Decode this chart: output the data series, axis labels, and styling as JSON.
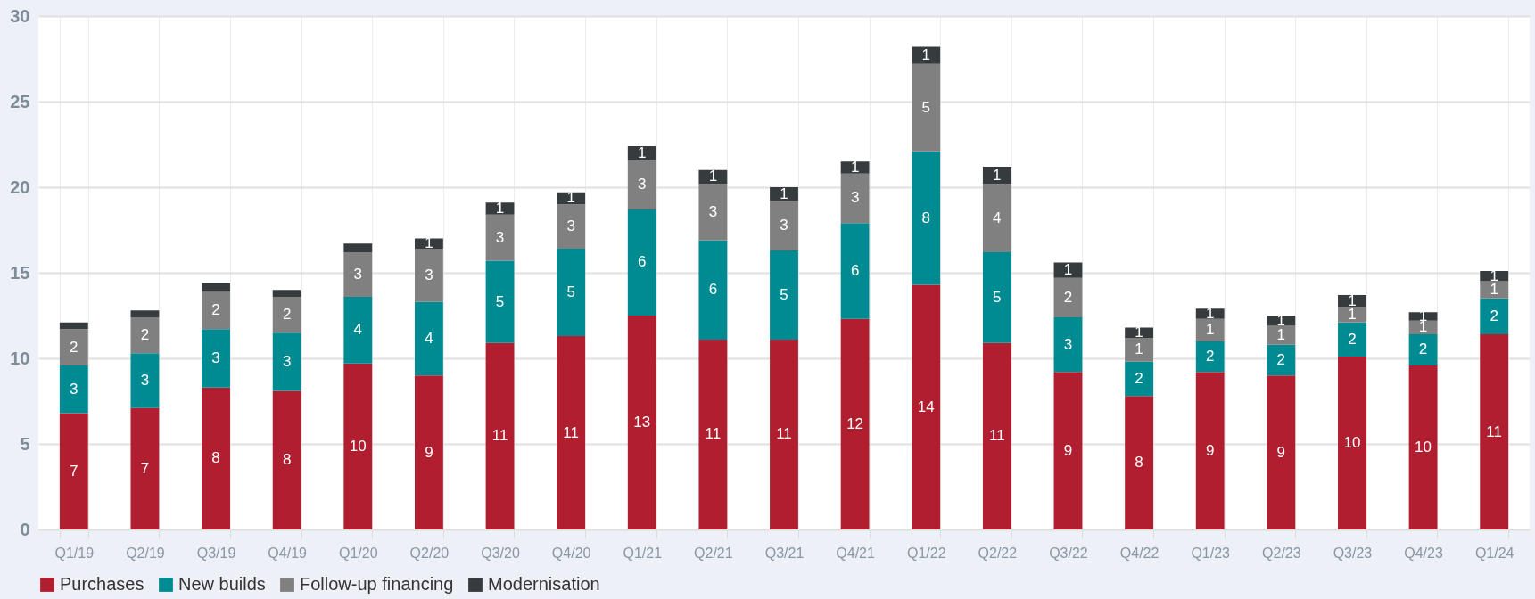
{
  "chart_data": {
    "type": "bar",
    "stacked": true,
    "categories": [
      "Q1/19",
      "Q2/19",
      "Q3/19",
      "Q4/19",
      "Q1/20",
      "Q2/20",
      "Q3/20",
      "Q4/20",
      "Q1/21",
      "Q2/21",
      "Q3/21",
      "Q4/21",
      "Q1/22",
      "Q2/22",
      "Q3/22",
      "Q4/22",
      "Q1/23",
      "Q2/23",
      "Q3/23",
      "Q4/23",
      "Q1/24"
    ],
    "ylim": [
      0,
      30
    ],
    "yticks": [
      0,
      5,
      10,
      15,
      20,
      25,
      30
    ],
    "grid": true,
    "legend": "bottom",
    "series": [
      {
        "name": "Purchases",
        "color": "#b01e2f",
        "values": [
          6.8,
          7.1,
          8.3,
          8.1,
          9.7,
          9.0,
          10.9,
          11.3,
          12.5,
          11.1,
          11.1,
          12.3,
          14.3,
          10.9,
          9.2,
          7.8,
          9.2,
          9.0,
          10.1,
          9.6,
          11.4
        ],
        "value_labels": [
          "7",
          "7",
          "8",
          "8",
          "10",
          "9",
          "11",
          "11",
          "13",
          "11",
          "11",
          "12",
          "14",
          "11",
          "9",
          "8",
          "9",
          "9",
          "10",
          "10",
          "11"
        ]
      },
      {
        "name": "New builds",
        "color": "#008b92",
        "values": [
          2.8,
          3.2,
          3.4,
          3.4,
          3.9,
          4.3,
          4.8,
          5.1,
          6.2,
          5.8,
          5.2,
          5.6,
          7.8,
          5.3,
          3.2,
          2.0,
          1.8,
          1.8,
          2.0,
          1.8,
          2.1
        ],
        "value_labels": [
          "3",
          "3",
          "3",
          "3",
          "4",
          "4",
          "5",
          "5",
          "6",
          "6",
          "5",
          "6",
          "8",
          "5",
          "3",
          "2",
          "2",
          "2",
          "2",
          "2",
          "2"
        ]
      },
      {
        "name": "Follow-up financing",
        "color": "#808080",
        "values": [
          2.1,
          2.1,
          2.2,
          2.1,
          2.6,
          3.1,
          2.7,
          2.6,
          2.9,
          3.3,
          2.9,
          2.9,
          5.1,
          4.0,
          2.3,
          1.4,
          1.3,
          1.1,
          0.9,
          0.8,
          1.0
        ],
        "value_labels": [
          "2",
          "2",
          "2",
          "2",
          "3",
          "3",
          "3",
          "3",
          "3",
          "3",
          "3",
          "3",
          "5",
          "4",
          "2",
          "1",
          "1",
          "1",
          "1",
          "1",
          "1"
        ]
      },
      {
        "name": "Modernisation",
        "color": "#363b3e",
        "values": [
          0.4,
          0.4,
          0.5,
          0.4,
          0.5,
          0.6,
          0.7,
          0.7,
          0.8,
          0.8,
          0.8,
          0.7,
          1.0,
          1.0,
          0.9,
          0.6,
          0.6,
          0.6,
          0.7,
          0.5,
          0.6
        ],
        "value_labels": [
          null,
          null,
          null,
          null,
          null,
          "1",
          "1",
          "1",
          "1",
          "1",
          "1",
          "1",
          "1",
          "1",
          "1",
          "1",
          "1",
          "1",
          "1",
          "1",
          "1"
        ]
      }
    ]
  }
}
